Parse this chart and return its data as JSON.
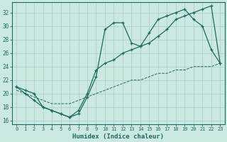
{
  "xlabel": "Humidex (Indice chaleur)",
  "bg_color": "#cce8e2",
  "grid_color": "#aad0ca",
  "line_color": "#1a6b5e",
  "xlim": [
    -0.5,
    23.5
  ],
  "ylim": [
    15.5,
    33.5
  ],
  "xticks": [
    0,
    1,
    2,
    3,
    4,
    5,
    6,
    7,
    8,
    9,
    10,
    11,
    12,
    13,
    14,
    15,
    16,
    17,
    18,
    19,
    20,
    21,
    22,
    23
  ],
  "yticks": [
    16,
    18,
    20,
    22,
    24,
    26,
    28,
    30,
    32
  ],
  "line1_x": [
    0,
    1,
    2,
    3,
    4,
    5,
    6,
    7,
    8,
    9,
    10,
    11,
    12,
    13,
    14,
    15,
    16,
    17,
    18,
    19,
    20,
    21,
    22,
    23
  ],
  "line1_y": [
    21.0,
    20.0,
    19.0,
    18.0,
    17.5,
    17.0,
    16.5,
    17.0,
    19.5,
    22.5,
    29.5,
    30.5,
    30.5,
    27.5,
    27.0,
    29.0,
    31.0,
    31.5,
    32.0,
    32.5,
    31.0,
    30.0,
    26.5,
    24.5
  ],
  "line2_x": [
    0,
    1,
    2,
    3,
    4,
    5,
    6,
    7,
    8,
    9,
    10,
    11,
    12,
    13,
    14,
    15,
    16,
    17,
    18,
    19,
    20,
    21,
    22,
    23
  ],
  "line2_y": [
    21.0,
    20.5,
    20.0,
    18.0,
    17.5,
    17.0,
    16.5,
    17.5,
    20.0,
    23.5,
    24.5,
    25.0,
    26.0,
    26.5,
    27.0,
    27.5,
    28.5,
    29.5,
    31.0,
    31.5,
    32.0,
    32.5,
    33.0,
    24.5
  ],
  "line3_x": [
    0,
    1,
    2,
    3,
    4,
    5,
    6,
    7,
    8,
    9,
    10,
    11,
    12,
    13,
    14,
    15,
    16,
    17,
    18,
    19,
    20,
    21,
    22,
    23
  ],
  "line3_y": [
    20.5,
    20.0,
    19.5,
    19.0,
    18.5,
    18.5,
    18.5,
    19.0,
    19.5,
    20.0,
    20.5,
    21.0,
    21.5,
    22.0,
    22.0,
    22.5,
    23.0,
    23.0,
    23.5,
    23.5,
    24.0,
    24.0,
    24.0,
    24.5
  ]
}
